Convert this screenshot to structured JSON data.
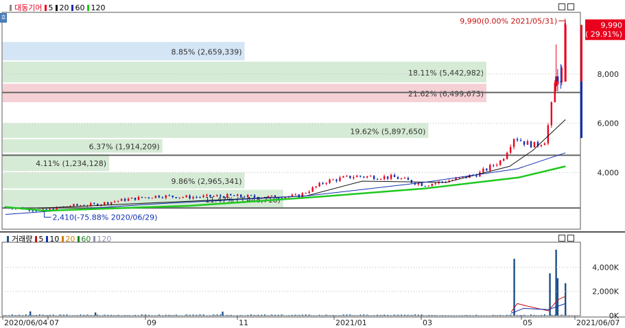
{
  "price_legend": {
    "stock_name": "대동기어",
    "ma_items": [
      {
        "label": "5",
        "color": "#e8001c"
      },
      {
        "label": "20",
        "color": "#111111"
      },
      {
        "label": "60",
        "color": "#1030b0"
      },
      {
        "label": "120",
        "color": "#1ec81e"
      }
    ]
  },
  "volume_legend": {
    "title": "거래량",
    "ma_items": [
      {
        "label": "5",
        "color": "#c81010"
      },
      {
        "label": "10",
        "color": "#1030b0"
      },
      {
        "label": "20",
        "color": "#d08000"
      },
      {
        "label": "60",
        "color": "#208020"
      },
      {
        "label": "120",
        "color": "#9090b0"
      }
    ]
  },
  "side_button_label": "호",
  "colors": {
    "up": "#e8001c",
    "down": "#1030b0",
    "volume": "#1a4f8a"
  },
  "chart_data": {
    "type": "candlestick",
    "price_axis": {
      "range": [
        1700,
        10500
      ],
      "ticks": [
        "4,000",
        "6,000",
        "8,000"
      ]
    },
    "volume_axis": {
      "range": [
        0,
        5900
      ],
      "ticks": [
        "0K",
        "2,000K",
        "4,000K"
      ]
    },
    "x_axis": {
      "range": [
        "2020-06-04",
        "2021-06-07"
      ],
      "tick_labels": [
        "2020/06/04",
        "07",
        "09",
        "11",
        "2021/01",
        "03",
        "05",
        "2021/06/07"
      ]
    },
    "current_price": {
      "value": "9,990",
      "change": "( 29.91%)"
    },
    "high_annotation": {
      "date": "2021-05-31",
      "price": 9990,
      "label": "9,990(0.00% 2021/05/31)"
    },
    "low_annotation": {
      "date": "2020-06-29",
      "price": 2410,
      "label": "2,410(-75.88% 2020/06/29)"
    },
    "volume_profile": [
      {
        "label": "8.85% (2,659,339)",
        "low": 8500,
        "high": 9300,
        "share": 0.5
      },
      {
        "label": "18.11% (5,442,982)",
        "low": 7600,
        "high": 8500,
        "share": 1.0
      },
      {
        "label": "21.62% (6,499,673)",
        "low": 6800,
        "high": 7600,
        "share": 1.0
      },
      {
        "label": "19.62% (5,897,650)",
        "low": 5350,
        "high": 6000,
        "share": 0.88
      },
      {
        "label": "6.37% (1,914,209)",
        "low": 4750,
        "high": 5350,
        "share": 0.33
      },
      {
        "label": "4.11% (1,234,128)",
        "low": 4000,
        "high": 4750,
        "share": 0.22
      },
      {
        "label": "9.86% (2,965,341)",
        "low": 3300,
        "high": 4000,
        "share": 0.5
      },
      {
        "label": "11.47% (3,448,718)",
        "low": 2500,
        "high": 3300,
        "share": 0.58
      }
    ],
    "horizontal_lines": [
      7250,
      4700,
      2560
    ],
    "monthly_closes": [
      {
        "date": "2020-06-04",
        "close": 2600
      },
      {
        "date": "2020-06-29",
        "close": 2450
      },
      {
        "date": "2020-07-15",
        "close": 2650
      },
      {
        "date": "2020-08-01",
        "close": 2700
      },
      {
        "date": "2020-08-20",
        "close": 2900
      },
      {
        "date": "2020-09-10",
        "close": 3050
      },
      {
        "date": "2020-10-01",
        "close": 3000
      },
      {
        "date": "2020-10-25",
        "close": 3050
      },
      {
        "date": "2020-11-20",
        "close": 3000
      },
      {
        "date": "2020-12-10",
        "close": 3050
      },
      {
        "date": "2020-12-28",
        "close": 3650
      },
      {
        "date": "2021-01-15",
        "close": 3850
      },
      {
        "date": "2021-02-10",
        "close": 3800
      },
      {
        "date": "2021-03-01",
        "close": 3500
      },
      {
        "date": "2021-03-20",
        "close": 3700
      },
      {
        "date": "2021-04-05",
        "close": 3950
      },
      {
        "date": "2021-04-20",
        "close": 4500
      },
      {
        "date": "2021-04-28",
        "close": 5450
      },
      {
        "date": "2021-05-05",
        "close": 5200
      },
      {
        "date": "2021-05-12",
        "close": 5100
      },
      {
        "date": "2021-05-18",
        "close": 5300
      },
      {
        "date": "2021-05-21",
        "close": 6300
      },
      {
        "date": "2021-05-25",
        "close": 7900
      },
      {
        "date": "2021-05-28",
        "close": 7690
      },
      {
        "date": "2021-05-31",
        "close": 9990
      }
    ],
    "ma_lines": [
      {
        "name": "20",
        "points": [
          [
            "2020-06-25",
            2550
          ],
          [
            "2020-09-01",
            2750
          ],
          [
            "2020-12-15",
            3050
          ],
          [
            "2021-01-20",
            3650
          ],
          [
            "2021-03-15",
            3600
          ],
          [
            "2021-04-25",
            4250
          ],
          [
            "2021-05-10",
            4900
          ],
          [
            "2021-05-31",
            6150
          ]
        ]
      },
      {
        "name": "60",
        "points": [
          [
            "2020-06-04",
            2300
          ],
          [
            "2020-09-01",
            2700
          ],
          [
            "2020-12-15",
            3050
          ],
          [
            "2021-03-01",
            3600
          ],
          [
            "2021-04-30",
            4150
          ],
          [
            "2021-05-31",
            4800
          ]
        ]
      },
      {
        "name": "120",
        "points": [
          [
            "2020-06-04",
            2600
          ],
          [
            "2020-06-30",
            2450
          ],
          [
            "2020-10-01",
            2650
          ],
          [
            "2020-12-20",
            3000
          ],
          [
            "2021-03-01",
            3350
          ],
          [
            "2021-05-01",
            3800
          ],
          [
            "2021-05-31",
            4250
          ]
        ]
      }
    ],
    "volume_spikes": [
      {
        "date": "2020-06-20",
        "value": 350
      },
      {
        "date": "2020-08-01",
        "value": 260
      },
      {
        "date": "2020-10-22",
        "value": 330
      },
      {
        "date": "2021-04-28",
        "value": 4700
      },
      {
        "date": "2021-05-21",
        "value": 3500
      },
      {
        "date": "2021-05-25",
        "value": 5450
      },
      {
        "date": "2021-05-26",
        "value": 3100
      },
      {
        "date": "2021-05-31",
        "value": 2680
      }
    ]
  }
}
